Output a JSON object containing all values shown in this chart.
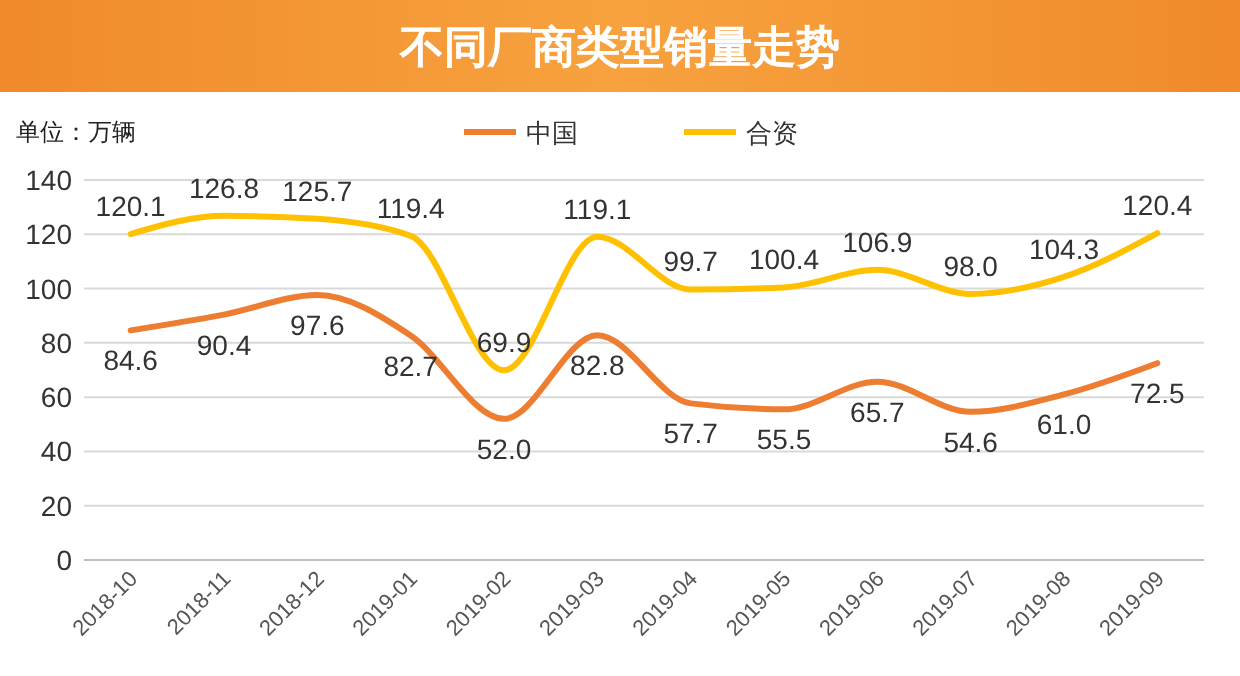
{
  "chart_data": {
    "type": "line",
    "title": "不同厂商类型销量走势",
    "ylabel": "单位：万辆",
    "categories": [
      "2018-10",
      "2018-11",
      "2018-12",
      "2019-01",
      "2019-02",
      "2019-03",
      "2019-04",
      "2019-05",
      "2019-06",
      "2019-07",
      "2019-08",
      "2019-09"
    ],
    "series": [
      {
        "name": "中国",
        "color": "#ed7d31",
        "values": [
          84.6,
          90.4,
          97.6,
          82.7,
          52.0,
          82.8,
          57.7,
          55.5,
          65.7,
          54.6,
          61.0,
          72.5
        ],
        "value_labels": [
          "84.6",
          "90.4",
          "97.6",
          "82.7",
          "52.0",
          "82.8",
          "57.7",
          "55.5",
          "65.7",
          "54.6",
          "61.0",
          "72.5"
        ]
      },
      {
        "name": "合资",
        "color": "#ffc000",
        "values": [
          120.1,
          126.8,
          125.7,
          119.4,
          69.9,
          119.1,
          99.7,
          100.4,
          106.9,
          98.0,
          104.3,
          120.4
        ],
        "value_labels": [
          "120.1",
          "126.8",
          "125.7",
          "119.4",
          "69.9",
          "119.1",
          "99.7",
          "100.4",
          "106.9",
          "98.0",
          "104.3",
          "120.4"
        ]
      }
    ],
    "ylim": [
      0,
      140
    ],
    "yticks": [
      0,
      20,
      40,
      60,
      80,
      100,
      120,
      140
    ],
    "grid": "y",
    "legend": "top",
    "marker": "none",
    "line_style": "solid"
  }
}
